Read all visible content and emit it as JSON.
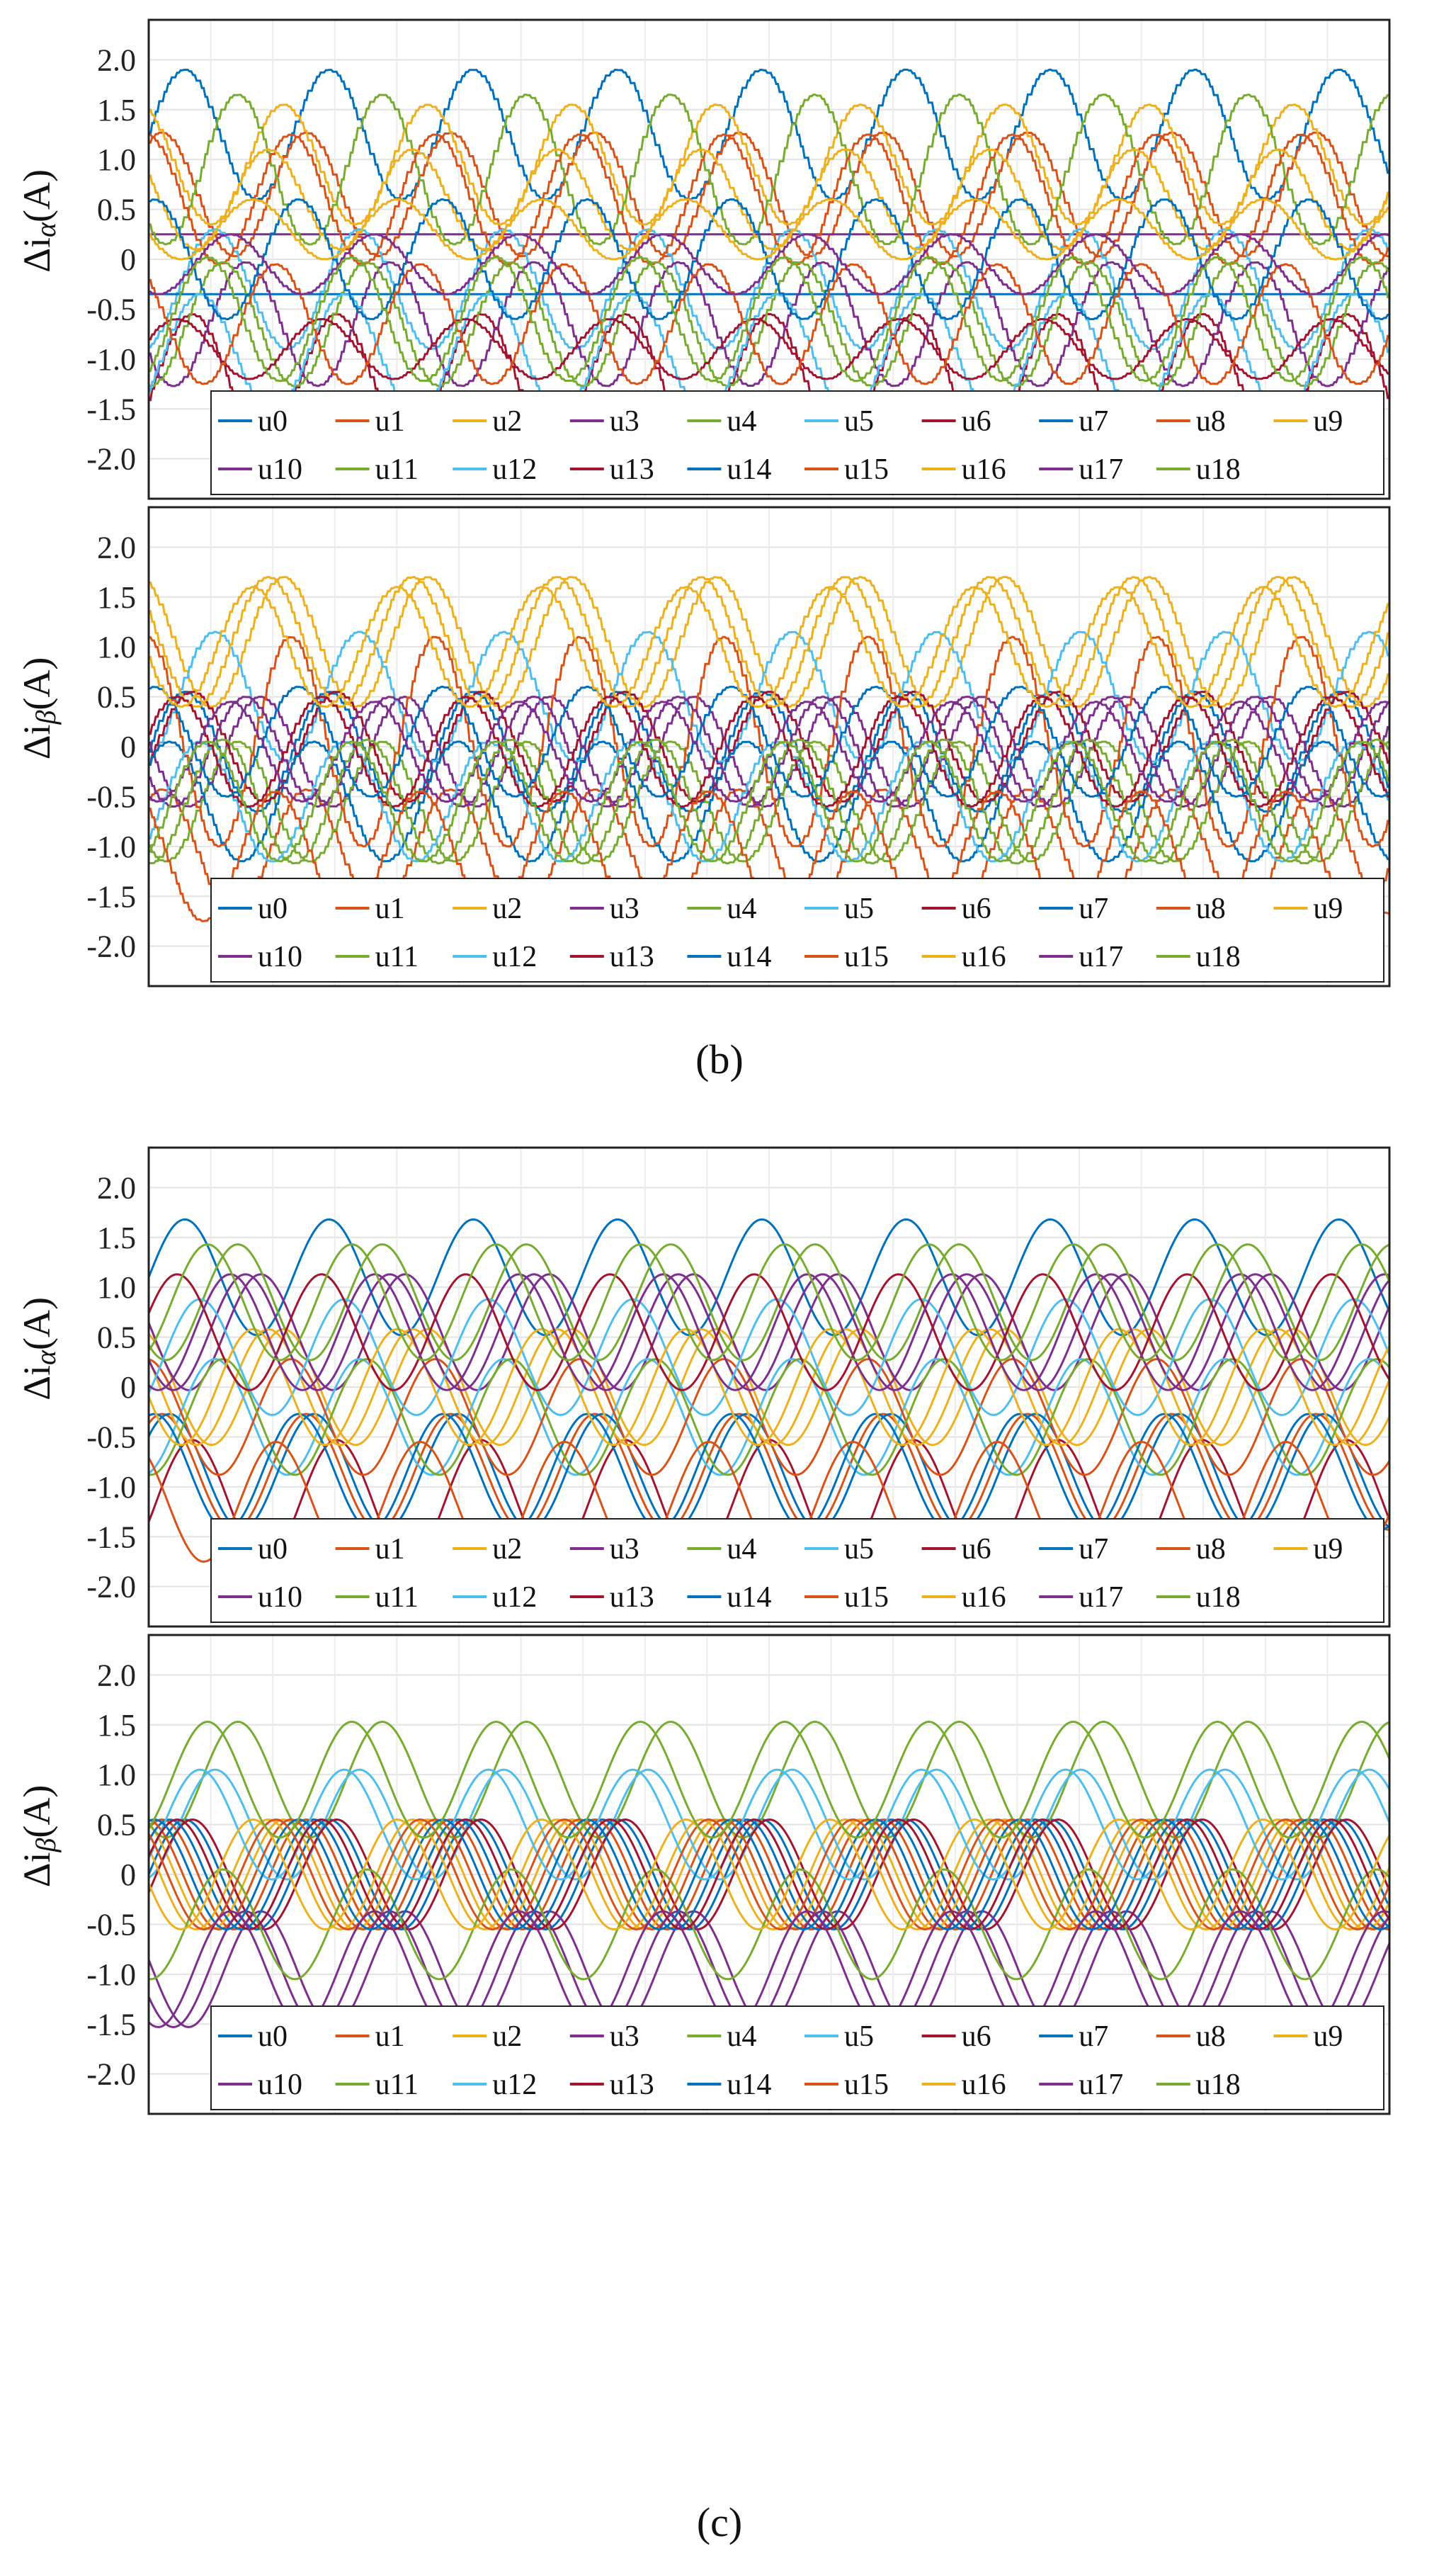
{
  "legend_labels": [
    "u0",
    "u1",
    "u2",
    "u3",
    "u4",
    "u5",
    "u6",
    "u7",
    "u8",
    "u9",
    "u10",
    "u11",
    "u12",
    "u13",
    "u14",
    "u15",
    "u16",
    "u17",
    "u18"
  ],
  "colors": [
    "#0072BD",
    "#D95319",
    "#EDB120",
    "#7E2F8E",
    "#77AC30",
    "#4DBEEE",
    "#A2142F",
    "#0072BD",
    "#D95319",
    "#EDB120",
    "#7E2F8E",
    "#77AC30",
    "#4DBEEE",
    "#A2142F",
    "#0072BD",
    "#D95319",
    "#EDB120",
    "#7E2F8E",
    "#77AC30"
  ],
  "captions": {
    "b": "(b)",
    "c": "(c)"
  },
  "chart_data": [
    {
      "type": "line",
      "panel": "b-top",
      "title": "",
      "ylabel": "Δi_α(A)",
      "ylabel_main": "Δi",
      "ylabel_sub": "α",
      "ylabel_unit": "(A)",
      "xlabel": "",
      "xlim": [
        0,
        10
      ],
      "ylim": [
        -2.4,
        2.4
      ],
      "yticks": [
        2.0,
        1.5,
        1.0,
        0.5,
        0,
        -0.5,
        -1.0,
        -1.5,
        -2.0
      ],
      "ytick_labels": [
        "2.0",
        "1.5",
        "1.0",
        "0.5",
        "0",
        "-0.5",
        "-1.0",
        "-1.5",
        "-2.0"
      ],
      "style": "stepped",
      "periods": 8.6,
      "series": [
        {
          "name": "u0",
          "offset": 1.25,
          "amplitude": 0.65
        },
        {
          "name": "u1",
          "offset": 0.65,
          "amplitude": 0.62
        },
        {
          "name": "u2",
          "offset": 0.95,
          "amplitude": 0.6
        },
        {
          "name": "u3",
          "offset": 0.25,
          "amplitude": 0.0
        },
        {
          "name": "u4",
          "offset": 0.9,
          "amplitude": 0.75
        },
        {
          "name": "u5",
          "offset": -0.3,
          "amplitude": 0.6
        },
        {
          "name": "u6",
          "offset": -1.2,
          "amplitude": 0.65
        },
        {
          "name": "u7",
          "offset": -0.35,
          "amplitude": 0.0
        },
        {
          "name": "u8",
          "offset": 0.6,
          "amplitude": 0.65
        },
        {
          "name": "u9",
          "offset": 0.6,
          "amplitude": 0.5
        },
        {
          "name": "u10",
          "offset": -0.65,
          "amplitude": 0.62
        },
        {
          "name": "u11",
          "offset": -0.65,
          "amplitude": 0.62
        },
        {
          "name": "u12",
          "offset": -0.95,
          "amplitude": 0.6
        },
        {
          "name": "u13",
          "offset": -0.9,
          "amplitude": 0.3
        },
        {
          "name": "u14",
          "offset": 0.0,
          "amplitude": 0.6
        },
        {
          "name": "u15",
          "offset": -0.65,
          "amplitude": 0.6
        },
        {
          "name": "u16",
          "offset": 0.3,
          "amplitude": 0.3
        },
        {
          "name": "u17",
          "offset": -0.05,
          "amplitude": 0.3
        },
        {
          "name": "u18",
          "offset": -0.6,
          "amplitude": 0.62
        }
      ]
    },
    {
      "type": "line",
      "panel": "b-bottom",
      "title": "",
      "ylabel": "Δi_β(A)",
      "ylabel_main": "Δi",
      "ylabel_sub": "β",
      "ylabel_unit": "(A)",
      "xlabel": "",
      "xlim": [
        0,
        10
      ],
      "ylim": [
        -2.4,
        2.4
      ],
      "yticks": [
        2.0,
        1.5,
        1.0,
        0.5,
        0,
        -0.5,
        -1.0,
        -1.5,
        -2.0
      ],
      "ytick_labels": [
        "2.0",
        "1.5",
        "1.0",
        "0.5",
        "0",
        "-0.5",
        "-1.0",
        "-1.5",
        "-2.0"
      ],
      "style": "stepped",
      "periods": 8.6,
      "series": [
        {
          "name": "u0",
          "offset": -0.05,
          "amplitude": 0.6
        },
        {
          "name": "u1",
          "offset": -1.05,
          "amplitude": 0.62
        },
        {
          "name": "u2",
          "offset": 1.05,
          "amplitude": 0.65
        },
        {
          "name": "u3",
          "offset": -0.05,
          "amplitude": 0.55
        },
        {
          "name": "u4",
          "offset": -0.55,
          "amplitude": 0.6
        },
        {
          "name": "u5",
          "offset": 0.5,
          "amplitude": 0.65
        },
        {
          "name": "u6",
          "offset": 0.0,
          "amplitude": 0.55
        },
        {
          "name": "u7",
          "offset": -0.55,
          "amplitude": 0.6
        },
        {
          "name": "u8",
          "offset": 0.05,
          "amplitude": 1.05
        },
        {
          "name": "u9",
          "offset": 1.05,
          "amplitude": 0.65
        },
        {
          "name": "u10",
          "offset": -0.05,
          "amplitude": 0.55
        },
        {
          "name": "u11",
          "offset": -0.55,
          "amplitude": 0.62
        },
        {
          "name": "u12",
          "offset": -0.55,
          "amplitude": 0.6
        },
        {
          "name": "u13",
          "offset": -0.05,
          "amplitude": 0.55
        },
        {
          "name": "u14",
          "offset": 0.05,
          "amplitude": 0.55
        },
        {
          "name": "u15",
          "offset": -1.1,
          "amplitude": 0.65
        },
        {
          "name": "u16",
          "offset": 1.0,
          "amplitude": 0.6
        },
        {
          "name": "u17",
          "offset": -0.05,
          "amplitude": 0.5
        },
        {
          "name": "u18",
          "offset": -0.55,
          "amplitude": 0.6
        }
      ]
    },
    {
      "type": "line",
      "panel": "c-top",
      "title": "",
      "ylabel": "Δi_α(A)",
      "ylabel_main": "Δi",
      "ylabel_sub": "α",
      "ylabel_unit": "(A)",
      "xlabel": "",
      "xlim": [
        0,
        10
      ],
      "ylim": [
        -2.4,
        2.4
      ],
      "yticks": [
        2.0,
        1.5,
        1.0,
        0.5,
        0,
        -0.5,
        -1.0,
        -1.5,
        -2.0
      ],
      "ytick_labels": [
        "2.0",
        "1.5",
        "1.0",
        "0.5",
        "0",
        "-0.5",
        "-1.0",
        "-1.5",
        "-2.0"
      ],
      "style": "smooth",
      "periods": 8.6,
      "series": [
        {
          "name": "u0",
          "offset": 1.1,
          "amplitude": 0.58
        },
        {
          "name": "u1",
          "offset": -0.85,
          "amplitude": 0.58
        },
        {
          "name": "u2",
          "offset": 0.0,
          "amplitude": 0.58
        },
        {
          "name": "u3",
          "offset": 0.55,
          "amplitude": 0.58
        },
        {
          "name": "u4",
          "offset": 0.85,
          "amplitude": 0.58
        },
        {
          "name": "u5",
          "offset": -0.3,
          "amplitude": 0.58
        },
        {
          "name": "u6",
          "offset": -1.15,
          "amplitude": 0.62
        },
        {
          "name": "u7",
          "offset": -0.85,
          "amplitude": 0.58
        },
        {
          "name": "u8",
          "offset": -0.3,
          "amplitude": 0.58
        },
        {
          "name": "u9",
          "offset": 0.0,
          "amplitude": 0.58
        },
        {
          "name": "u10",
          "offset": 0.55,
          "amplitude": 0.58
        },
        {
          "name": "u11",
          "offset": -0.3,
          "amplitude": 0.58
        },
        {
          "name": "u12",
          "offset": 0.3,
          "amplitude": 0.58
        },
        {
          "name": "u13",
          "offset": 0.55,
          "amplitude": 0.58
        },
        {
          "name": "u14",
          "offset": -0.85,
          "amplitude": 0.58
        },
        {
          "name": "u15",
          "offset": -1.15,
          "amplitude": 0.6
        },
        {
          "name": "u16",
          "offset": 0.0,
          "amplitude": 0.58
        },
        {
          "name": "u17",
          "offset": 0.55,
          "amplitude": 0.58
        },
        {
          "name": "u18",
          "offset": 0.85,
          "amplitude": 0.58
        }
      ]
    },
    {
      "type": "line",
      "panel": "c-bottom",
      "title": "",
      "ylabel": "Δi_β(A)",
      "ylabel_main": "Δi",
      "ylabel_sub": "β",
      "ylabel_unit": "(A)",
      "xlabel": "",
      "xlim": [
        0,
        10
      ],
      "ylim": [
        -2.4,
        2.4
      ],
      "yticks": [
        2.0,
        1.5,
        1.0,
        0.5,
        0,
        -0.5,
        -1.0,
        -1.5,
        -2.0
      ],
      "ytick_labels": [
        "2.0",
        "1.5",
        "1.0",
        "0.5",
        "0",
        "-0.5",
        "-1.0",
        "-1.5",
        "-2.0"
      ],
      "style": "smooth",
      "periods": 8.6,
      "series": [
        {
          "name": "u0",
          "offset": 0.0,
          "amplitude": 0.55
        },
        {
          "name": "u1",
          "offset": 0.0,
          "amplitude": 0.55
        },
        {
          "name": "u2",
          "offset": 0.0,
          "amplitude": 0.55
        },
        {
          "name": "u3",
          "offset": -0.95,
          "amplitude": 0.58
        },
        {
          "name": "u4",
          "offset": 0.95,
          "amplitude": 0.58
        },
        {
          "name": "u5",
          "offset": 0.5,
          "amplitude": 0.55
        },
        {
          "name": "u6",
          "offset": 0.0,
          "amplitude": 0.55
        },
        {
          "name": "u7",
          "offset": 0.0,
          "amplitude": 0.55
        },
        {
          "name": "u8",
          "offset": 0.0,
          "amplitude": 0.55
        },
        {
          "name": "u9",
          "offset": 0.0,
          "amplitude": 0.55
        },
        {
          "name": "u10",
          "offset": -0.95,
          "amplitude": 0.58
        },
        {
          "name": "u11",
          "offset": -0.5,
          "amplitude": 0.55
        },
        {
          "name": "u12",
          "offset": 0.5,
          "amplitude": 0.55
        },
        {
          "name": "u13",
          "offset": 0.0,
          "amplitude": 0.55
        },
        {
          "name": "u14",
          "offset": 0.0,
          "amplitude": 0.55
        },
        {
          "name": "u15",
          "offset": 0.0,
          "amplitude": 0.55
        },
        {
          "name": "u16",
          "offset": 0.0,
          "amplitude": 0.55
        },
        {
          "name": "u17",
          "offset": -0.95,
          "amplitude": 0.58
        },
        {
          "name": "u18",
          "offset": 0.95,
          "amplitude": 0.58
        }
      ]
    }
  ]
}
